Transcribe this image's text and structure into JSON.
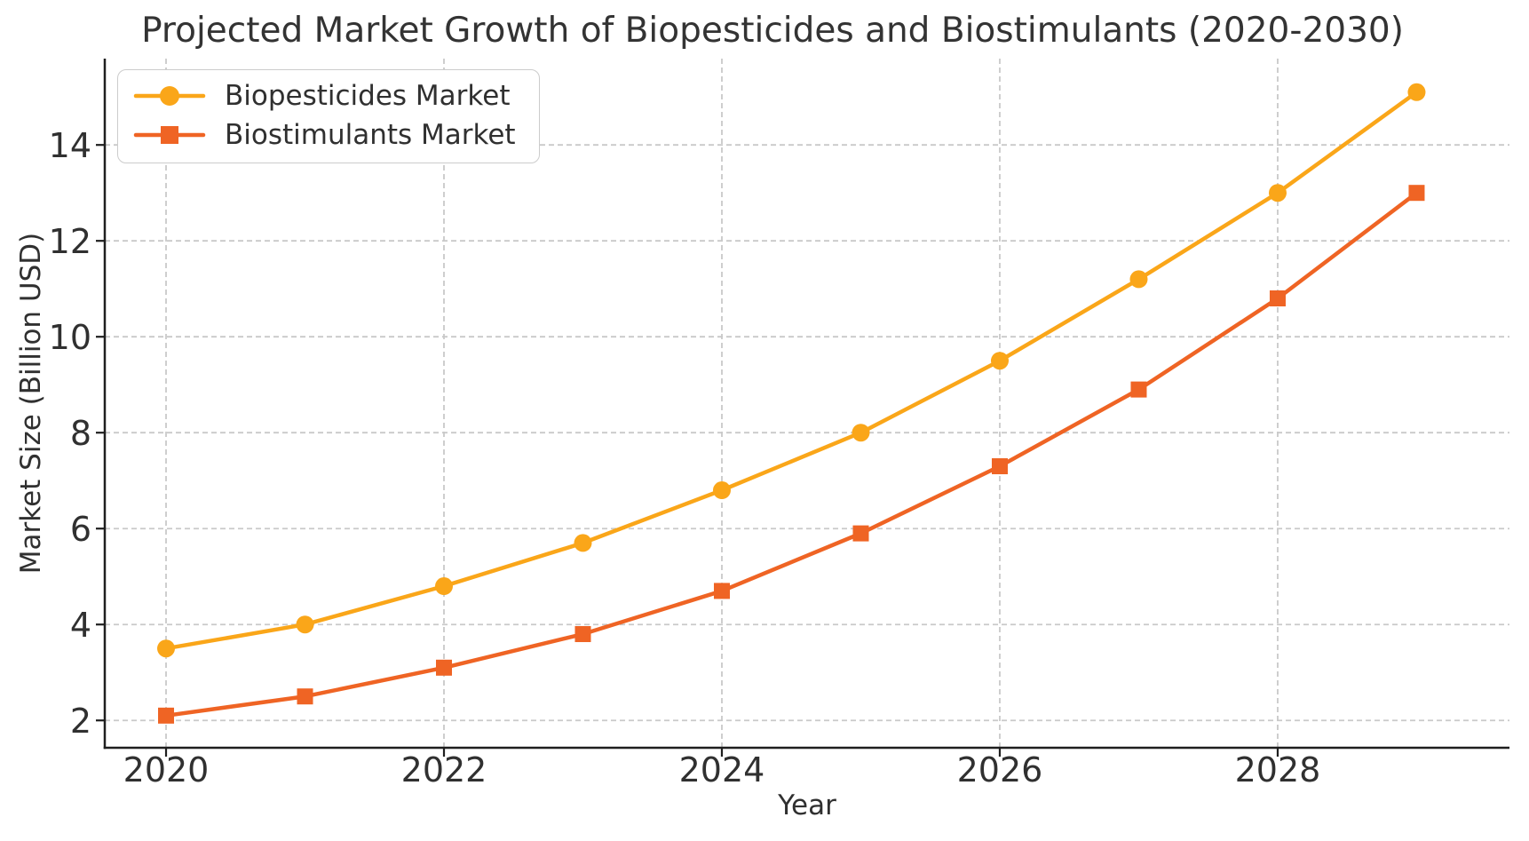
{
  "chart_data": {
    "type": "line",
    "title": "Projected Market Growth of Biopesticides and Biostimulants (2020-2030)",
    "xlabel": "Year",
    "ylabel": "Market Size (Billion USD)",
    "x": [
      2020,
      2021,
      2022,
      2023,
      2024,
      2025,
      2026,
      2027,
      2028,
      2029
    ],
    "series": [
      {
        "name": "Biopesticides Market",
        "marker": "circle",
        "color": "#FAA619",
        "values": [
          3.5,
          4.0,
          4.8,
          5.7,
          6.8,
          8.0,
          9.5,
          11.2,
          13.0,
          15.1
        ]
      },
      {
        "name": "Biostimulants Market",
        "marker": "square",
        "color": "#EF6424",
        "values": [
          2.1,
          2.5,
          3.1,
          3.8,
          4.7,
          5.9,
          7.3,
          8.9,
          10.8,
          13.0
        ]
      }
    ],
    "xticks": [
      2020,
      2022,
      2024,
      2026,
      2028
    ],
    "yticks": [
      2,
      4,
      6,
      8,
      10,
      12,
      14
    ],
    "xlim": [
      2019.559,
      2029.668
    ],
    "ylim": [
      1.43,
      15.8
    ],
    "grid": "dashed",
    "legend_position": "upper left",
    "colors": {
      "grid": "#C9C9C9",
      "spine": "#1F1F1F",
      "tick_text": "#303030",
      "title_text": "#333333",
      "background": "#FFFFFF"
    }
  }
}
